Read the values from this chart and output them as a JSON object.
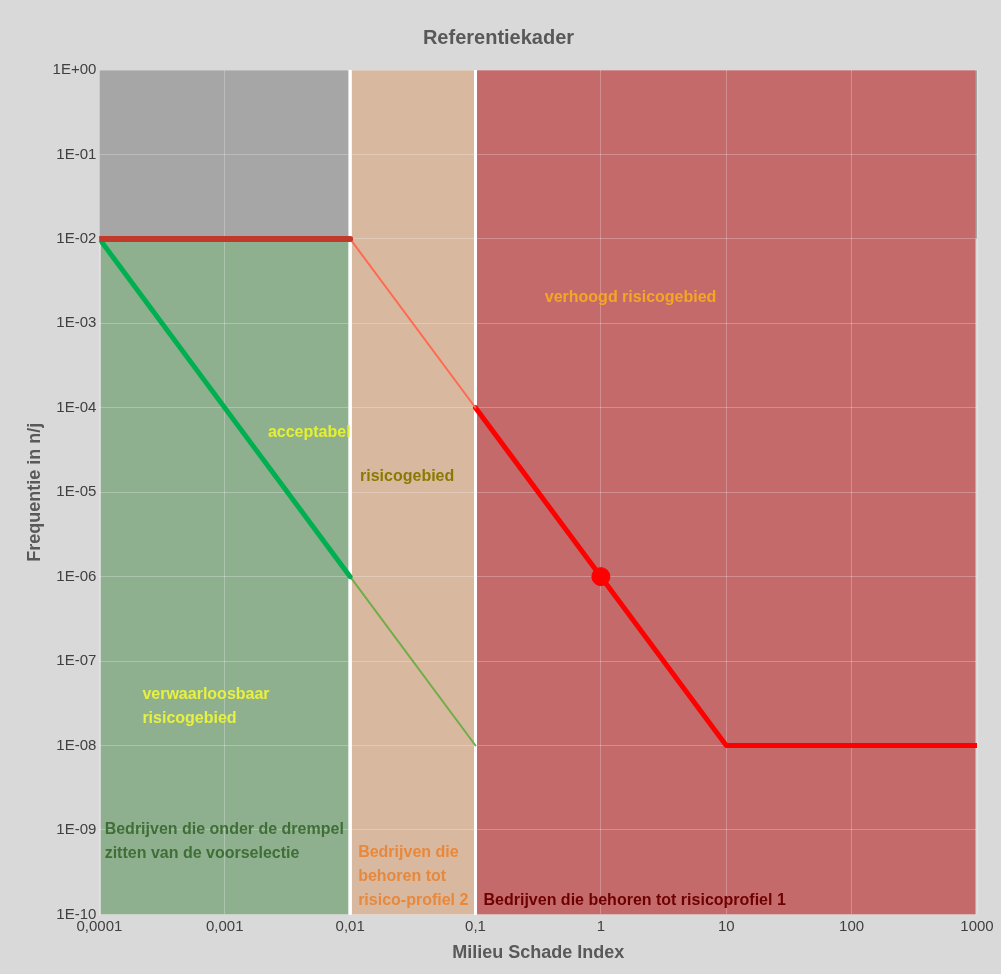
{
  "chart_data": {
    "type": "line",
    "title": "Referentiekader",
    "xlabel": "Milieu Schade Index",
    "ylabel": "Frequentie in n/j",
    "log": "xy",
    "xlim": [
      0.0001,
      1000
    ],
    "ylim": [
      1e-10,
      1
    ],
    "xticks": [
      {
        "value": 0.0001,
        "label": "0,0001"
      },
      {
        "value": 0.001,
        "label": "0,001"
      },
      {
        "value": 0.01,
        "label": "0,01"
      },
      {
        "value": 0.1,
        "label": "0,1"
      },
      1,
      10,
      100,
      1000
    ],
    "yticks": [
      {
        "value": 1e-10,
        "label": "1E-10"
      },
      {
        "value": 1e-09,
        "label": "1E-09"
      },
      {
        "value": 1e-08,
        "label": "1E-08"
      },
      {
        "value": 1e-07,
        "label": "1E-07"
      },
      {
        "value": 1e-06,
        "label": "1E-06"
      },
      {
        "value": 1e-05,
        "label": "1E-05"
      },
      {
        "value": 0.0001,
        "label": "1E-04"
      },
      {
        "value": 0.001,
        "label": "1E-03"
      },
      {
        "value": 0.01,
        "label": "1E-02"
      },
      {
        "value": 0.1,
        "label": "1E-01"
      },
      {
        "value": 1,
        "label": "1E+00"
      }
    ],
    "grid": true,
    "legend": false,
    "marker": "none",
    "series": [
      {
        "type": "line",
        "color": "#c0392b",
        "x": [
          0.0001,
          0.01
        ],
        "values": [
          0.01,
          0.01
        ]
      },
      {
        "type": "line",
        "color": "#00b050",
        "x": [
          0.0001,
          0.01
        ],
        "values": [
          0.01,
          1e-06
        ]
      },
      {
        "type": "line",
        "color": "#70ad47",
        "x": [
          0.01,
          0.1
        ],
        "values": [
          1e-06,
          1e-08
        ]
      },
      {
        "type": "line",
        "color": "#ff6a50",
        "x": [
          0.01,
          0.1
        ],
        "values": [
          0.01,
          0.0001
        ]
      },
      {
        "type": "line",
        "color": "#ff0000",
        "x": [
          0.1,
          10,
          1000
        ],
        "values": [
          0.0001,
          1e-08,
          1e-08
        ]
      },
      {
        "type": "scatter",
        "marker": "circle",
        "color": "#ff0000",
        "x": [
          1
        ],
        "values": [
          1e-06
        ]
      }
    ],
    "bands": [
      {
        "axis": "x",
        "from": 0.0001,
        "to": 0.01,
        "color": "#8fb08f"
      },
      {
        "axis": "y",
        "from": 0.01,
        "to": 1,
        "color": "#a6a6a6"
      },
      {
        "axis": "x",
        "from": 0.01,
        "to": 0.1,
        "color": "#d9b8a0",
        "label": "Bedrijven die behoren tot risico-profiel 2"
      },
      {
        "axis": "x",
        "from": 0.1,
        "to": 1000,
        "color": "#c46a6a",
        "label": "Bedrijven die behoren tot risicoprofiel 1"
      }
    ],
    "annotations": [
      "verhoogd risicogebied",
      "acceptabel",
      "risicogebied",
      "verwaarloosbaar risicogebied",
      "Bedrijven die onder de drempel zitten van de voorselectie"
    ]
  }
}
